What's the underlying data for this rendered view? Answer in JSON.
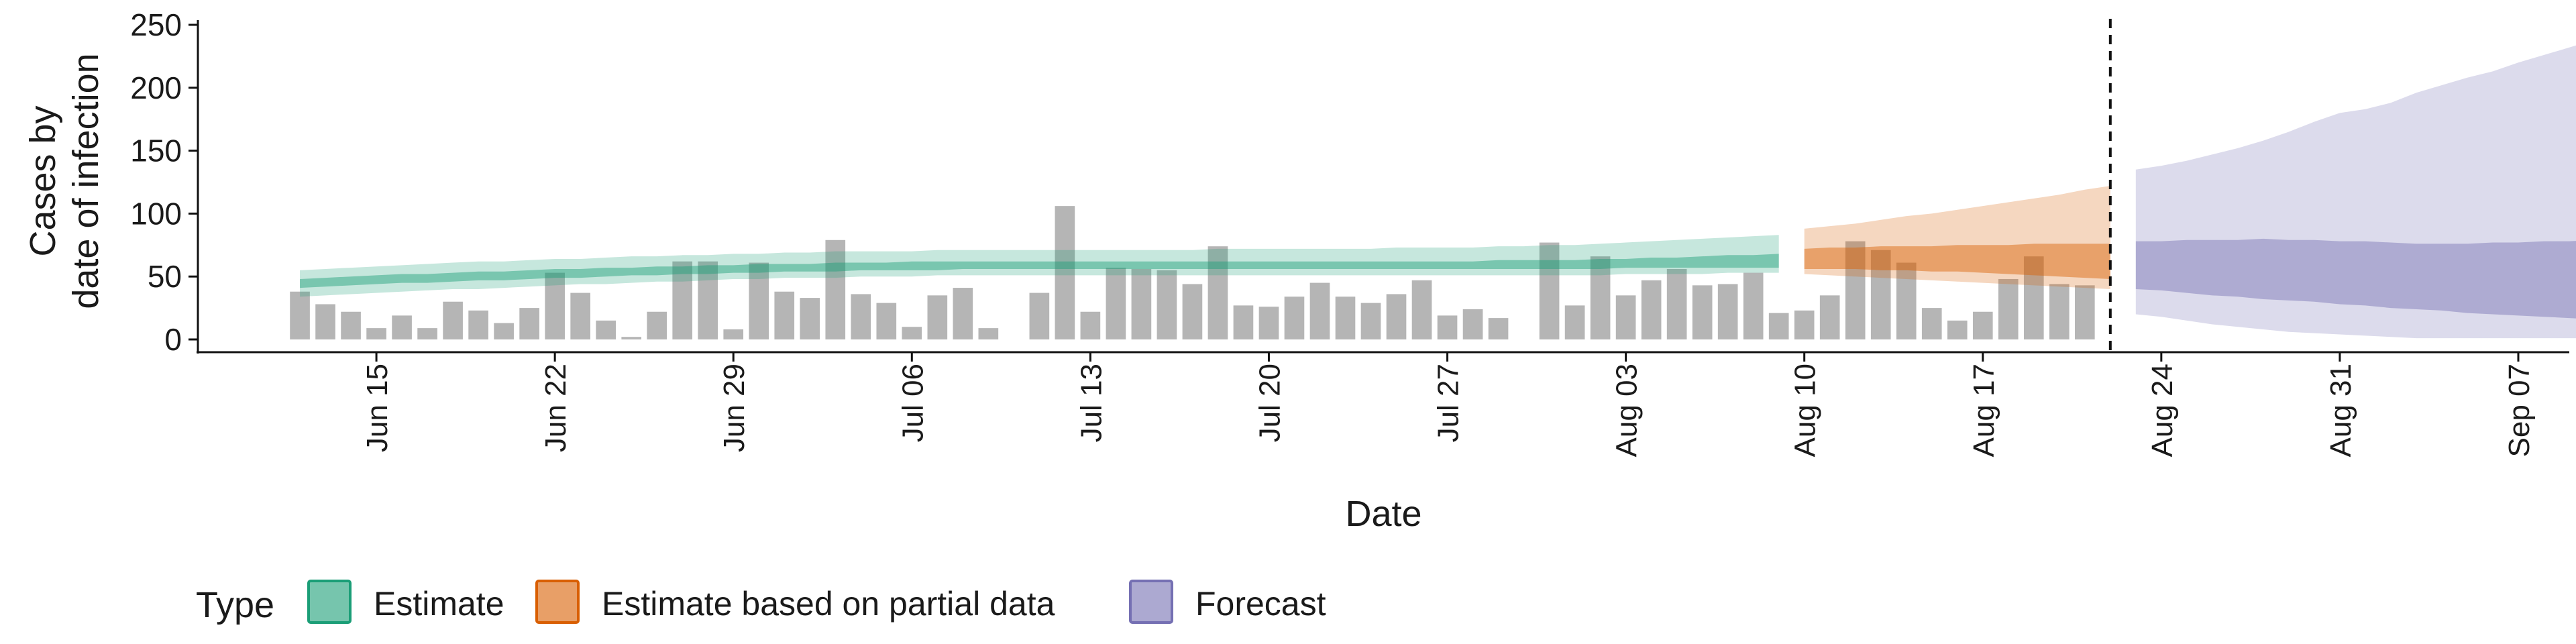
{
  "chart_data": {
    "type": "bar",
    "xlabel": "Date",
    "ylabel_lines": [
      "Cases by",
      "date of infection"
    ],
    "ylim": [
      0,
      250
    ],
    "y_ticks": [
      0,
      50,
      100,
      150,
      200,
      250
    ],
    "x_ticks": [
      {
        "date": "2020-06-15",
        "label": "Jun 15"
      },
      {
        "date": "2020-06-22",
        "label": "Jun 22"
      },
      {
        "date": "2020-06-29",
        "label": "Jun 29"
      },
      {
        "date": "2020-07-06",
        "label": "Jul 06"
      },
      {
        "date": "2020-07-13",
        "label": "Jul 13"
      },
      {
        "date": "2020-07-20",
        "label": "Jul 20"
      },
      {
        "date": "2020-07-27",
        "label": "Jul 27"
      },
      {
        "date": "2020-08-03",
        "label": "Aug 03"
      },
      {
        "date": "2020-08-10",
        "label": "Aug 10"
      },
      {
        "date": "2020-08-17",
        "label": "Aug 17"
      },
      {
        "date": "2020-08-24",
        "label": "Aug 24"
      },
      {
        "date": "2020-08-31",
        "label": "Aug 31"
      },
      {
        "date": "2020-09-07",
        "label": "Sep 07"
      }
    ],
    "xlim": [
      "2020-06-08",
      "2020-09-09"
    ],
    "reported_cases": {
      "start_date": "2020-06-12",
      "values": [
        38,
        28,
        22,
        9,
        19,
        9,
        30,
        23,
        13,
        25,
        53,
        37,
        15,
        2,
        22,
        62,
        62,
        8,
        61,
        38,
        33,
        79,
        36,
        29,
        10,
        35,
        41,
        9,
        null,
        37,
        106,
        22,
        57,
        56,
        55,
        44,
        74,
        27,
        26,
        34,
        45,
        34,
        29,
        36,
        47,
        19,
        24,
        17,
        null,
        77,
        27,
        66,
        35,
        47,
        56,
        43,
        44,
        53,
        21,
        23,
        35,
        78,
        71,
        61,
        25,
        15,
        22,
        48,
        66,
        44,
        43
      ]
    },
    "vline_date": "2020-08-22",
    "series": [
      {
        "name": "Estimate",
        "color": "#1b9e77",
        "start_date": "2020-06-12",
        "lower90": [
          34,
          35,
          36,
          37,
          38,
          39,
          40,
          40,
          41,
          42,
          43,
          44,
          44,
          45,
          46,
          46,
          47,
          48,
          48,
          49,
          49,
          49,
          50,
          50,
          50,
          51,
          51,
          51,
          51,
          51,
          51,
          51,
          51,
          51,
          51,
          51,
          51,
          51,
          51,
          51,
          51,
          51,
          51,
          51,
          51,
          51,
          51,
          51,
          51,
          51,
          51,
          51,
          52,
          52,
          52,
          52,
          53,
          53,
          53
        ],
        "upper90": [
          55,
          56,
          57,
          58,
          59,
          60,
          61,
          62,
          62,
          63,
          64,
          64,
          65,
          66,
          66,
          67,
          67,
          68,
          68,
          69,
          69,
          70,
          70,
          70,
          70,
          71,
          71,
          71,
          71,
          71,
          71,
          71,
          71,
          71,
          71,
          71,
          72,
          72,
          72,
          72,
          72,
          72,
          72,
          73,
          73,
          73,
          73,
          74,
          74,
          75,
          75,
          76,
          77,
          78,
          79,
          80,
          81,
          82,
          83
        ],
        "lower50": [
          41,
          42,
          43,
          44,
          45,
          45,
          46,
          47,
          47,
          48,
          49,
          49,
          50,
          51,
          51,
          52,
          52,
          53,
          53,
          54,
          54,
          54,
          55,
          55,
          55,
          55,
          56,
          56,
          56,
          56,
          56,
          56,
          56,
          56,
          56,
          56,
          56,
          56,
          56,
          56,
          56,
          56,
          56,
          56,
          56,
          56,
          56,
          56,
          56,
          56,
          56,
          56,
          57,
          57,
          57,
          57,
          57,
          57,
          57
        ],
        "upper50": [
          48,
          49,
          50,
          51,
          52,
          52,
          53,
          54,
          54,
          55,
          56,
          56,
          57,
          57,
          58,
          58,
          59,
          59,
          60,
          60,
          60,
          61,
          61,
          61,
          62,
          62,
          62,
          62,
          62,
          62,
          62,
          62,
          62,
          62,
          62,
          62,
          62,
          62,
          62,
          62,
          62,
          62,
          62,
          62,
          62,
          62,
          62,
          63,
          63,
          63,
          63,
          64,
          64,
          65,
          65,
          66,
          67,
          67,
          68
        ]
      },
      {
        "name": "Estimate based on partial data",
        "color": "#d95f02",
        "start_date": "2020-08-10",
        "lower90": [
          52,
          51,
          50,
          49,
          48,
          47,
          46,
          45,
          44,
          43,
          42,
          41,
          40
        ],
        "upper90": [
          88,
          90,
          92,
          95,
          98,
          100,
          103,
          106,
          109,
          112,
          115,
          119,
          122
        ],
        "lower50": [
          56,
          56,
          56,
          55,
          55,
          54,
          54,
          53,
          52,
          51,
          50,
          49,
          48
        ],
        "upper50": [
          72,
          73,
          73,
          74,
          74,
          74,
          75,
          75,
          75,
          76,
          76,
          76,
          76
        ]
      },
      {
        "name": "Forecast",
        "color": "#7570b3",
        "start_date": "2020-08-23",
        "lower90": [
          20,
          18,
          15,
          12,
          10,
          8,
          6,
          5,
          4,
          3,
          2,
          1,
          1,
          1,
          1,
          1,
          1,
          1,
          1,
          1
        ],
        "upper90": [
          135,
          138,
          142,
          147,
          152,
          158,
          165,
          173,
          180,
          183,
          188,
          196,
          202,
          208,
          213,
          220,
          226,
          232,
          238,
          242
        ],
        "lower50": [
          40,
          39,
          37,
          35,
          34,
          32,
          31,
          30,
          28,
          27,
          25,
          24,
          23,
          21,
          20,
          19,
          18,
          17,
          16,
          16
        ],
        "upper50": [
          78,
          78,
          79,
          79,
          79,
          80,
          79,
          79,
          78,
          78,
          77,
          76,
          76,
          76,
          77,
          77,
          78,
          78,
          79,
          79
        ]
      }
    ],
    "legend": {
      "title": "Type",
      "position": "bottom",
      "items": [
        "Estimate",
        "Estimate based on partial data",
        "Forecast"
      ]
    },
    "grid": false
  }
}
